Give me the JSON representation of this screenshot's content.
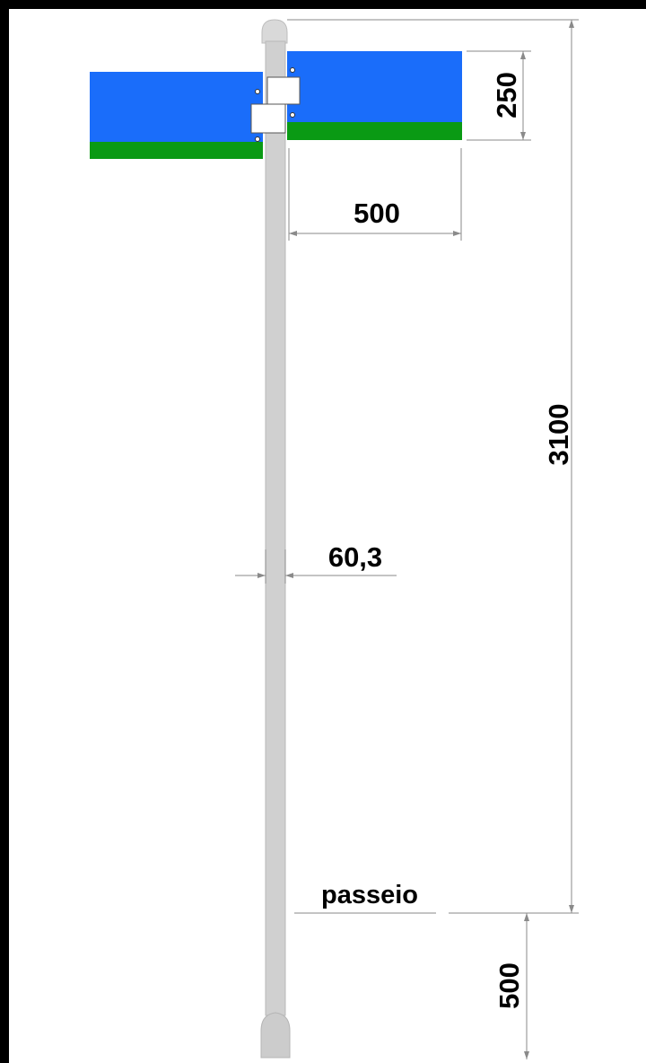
{
  "dimensions": {
    "sign_height": "250",
    "sign_width": "500",
    "total_height": "3100",
    "pole_diameter": "60,3",
    "embed_depth": "500"
  },
  "labels": {
    "ground": "passeio"
  },
  "colors": {
    "sign_blue": "#1a6dfa",
    "sign_green": "#0a9a14",
    "pole": "#cfcfcf",
    "frame": "#000000",
    "dimension_lines": "#8a8a8a"
  }
}
